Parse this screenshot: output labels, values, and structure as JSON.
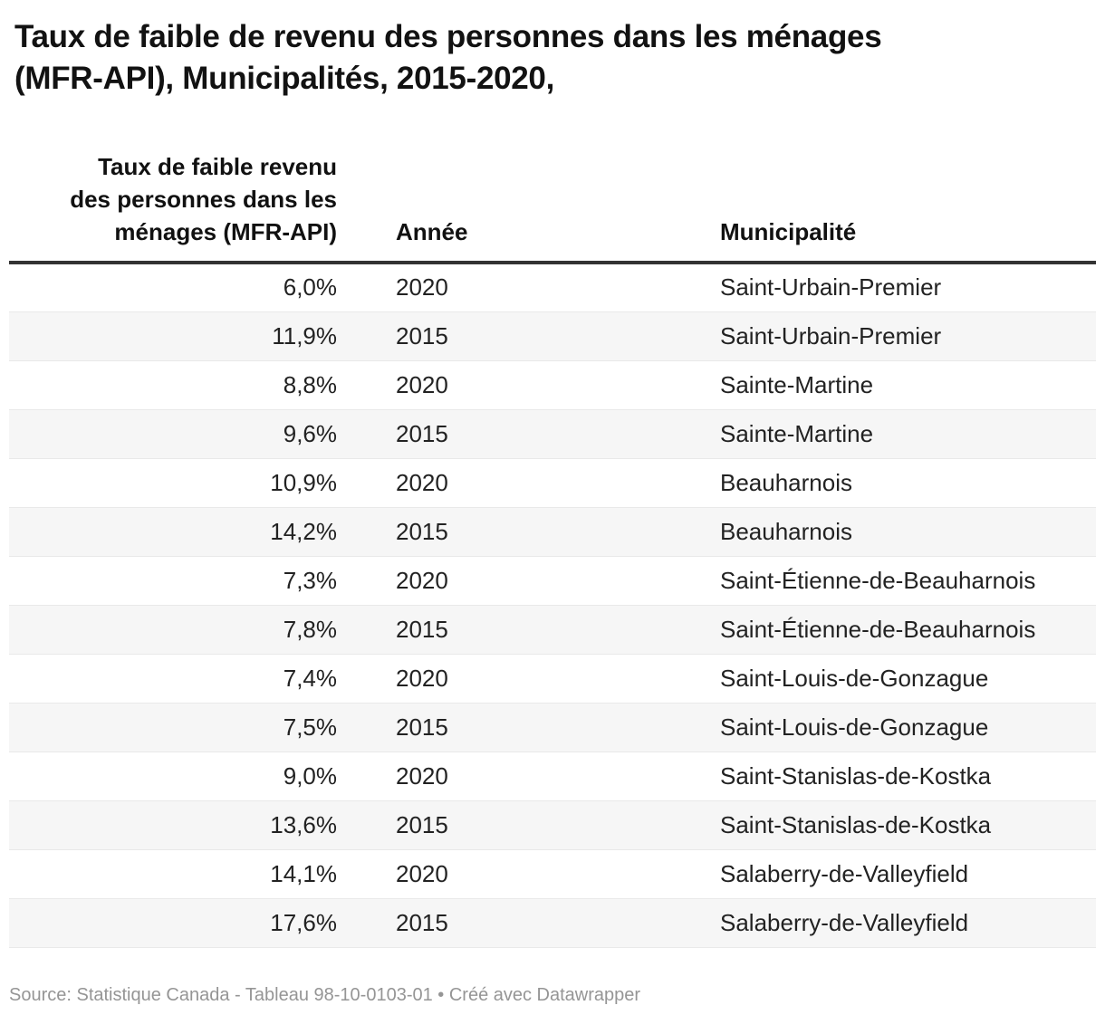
{
  "chart_data": {
    "type": "table",
    "title": "Taux de faible de revenu des personnes dans les ménages\n(MFR-API), Municipalités, 2015-2020,",
    "columns": [
      "Taux de faible revenu des personnes dans les ménages (MFR-API)",
      "Année",
      "Municipalité"
    ],
    "rows": [
      {
        "rate": "6,0%",
        "year": "2020",
        "municipality": "Saint-Urbain-Premier"
      },
      {
        "rate": "11,9%",
        "year": "2015",
        "municipality": "Saint-Urbain-Premier"
      },
      {
        "rate": "8,8%",
        "year": "2020",
        "municipality": "Sainte-Martine"
      },
      {
        "rate": "9,6%",
        "year": "2015",
        "municipality": "Sainte-Martine"
      },
      {
        "rate": "10,9%",
        "year": "2020",
        "municipality": "Beauharnois"
      },
      {
        "rate": "14,2%",
        "year": "2015",
        "municipality": "Beauharnois"
      },
      {
        "rate": "7,3%",
        "year": "2020",
        "municipality": "Saint-Étienne-de-Beauharnois"
      },
      {
        "rate": "7,8%",
        "year": "2015",
        "municipality": "Saint-Étienne-de-Beauharnois"
      },
      {
        "rate": "7,4%",
        "year": "2020",
        "municipality": "Saint-Louis-de-Gonzague"
      },
      {
        "rate": "7,5%",
        "year": "2015",
        "municipality": "Saint-Louis-de-Gonzague"
      },
      {
        "rate": "9,0%",
        "year": "2020",
        "municipality": "Saint-Stanislas-de-Kostka"
      },
      {
        "rate": "13,6%",
        "year": "2015",
        "municipality": "Saint-Stanislas-de-Kostka"
      },
      {
        "rate": "14,1%",
        "year": "2020",
        "municipality": "Salaberry-de-Valleyfield"
      },
      {
        "rate": "17,6%",
        "year": "2015",
        "municipality": "Salaberry-de-Valleyfield"
      }
    ],
    "source_note": "Source: Statistique Canada - Tableau 98-10-0103-01 • Créé avec Datawrapper",
    "layout_hints": {
      "zebra_striping": true,
      "rate_column_align": "right"
    }
  },
  "header": {
    "column_rate": "Taux de faible revenu\ndes personnes dans les\nménages (MFR-API)",
    "column_year": "Année",
    "column_municipality": "Municipalité"
  },
  "colors": {
    "title_text": "#121212",
    "header_text": "#111111",
    "body_text": "#222222",
    "header_rule": "#333333",
    "row_border": "#e9e9e9",
    "zebra_row": "#f6f6f6",
    "footer_text": "#959595"
  }
}
